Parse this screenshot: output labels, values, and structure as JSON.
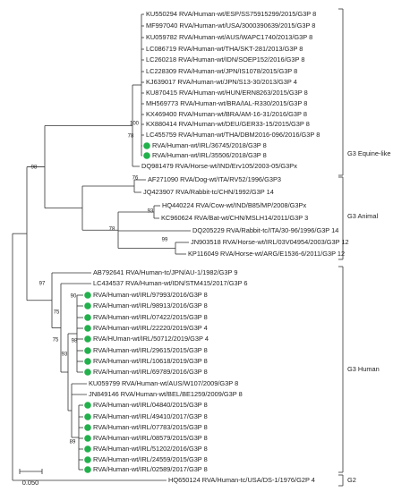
{
  "leaves": [
    {
      "label": "KU550294 RVA/Human-wt/ESP/SS75915299/2015/G3P 8"
    },
    {
      "label": "MF997040 RVA/Human-wt/USA/3000390639/2015/G3P 8"
    },
    {
      "label": "KU059782 RVA/Human-wt/AUS/WAPC1740/2013/G3P 8"
    },
    {
      "label": "LC086719 RVA/Human-wt/THA/SKT-281/2013/G3P 8"
    },
    {
      "label": "LC260218 RVA/Human-wt/IDN/SOEP152/2016/G3P 8"
    },
    {
      "label": "LC228309 RVA/Human-wt/JPN/IS1078/2015/G3P 8"
    },
    {
      "label": "KJ639017 RVA/Human-wt/JPN/S13-30/2013/G3P 4"
    },
    {
      "label": "KU870415 RVA/Human-wt/HUN/ERN8263/2015/G3P 8"
    },
    {
      "label": "MH569773 RVA/Human-wt/BRA/IAL-R330/2015/G3P 8"
    },
    {
      "label": "KX469400 RVA/Human-wt/BRA/AM-16-31/2016/G3P 8"
    },
    {
      "label": "KX880414 RVA/Human-wt/DEU/GER33-15/2015/G3P 8"
    },
    {
      "label": "LC455759 RVA/Human-wt/THA/DBM2016-096/2016/G3P 8"
    },
    {
      "label": "RVA/Human-wt/IRL/36745/2018/G3P 8"
    },
    {
      "label": "RVA/Human-wt/IRL/35506/2018/G3P 8"
    },
    {
      "label": "DQ981479 RVA/Horse-wt/IND/Erv105/2003-05/G3Px"
    },
    {
      "label": "AF271090 RVA/Dog-wt/ITA/RV52/1996/G3P3"
    },
    {
      "label": "JQ423907 RVA/Rabbit-tc/CHN/1992/G3P 14"
    },
    {
      "label": "HQ440224 RVA/Cow-wt/IND/B85/MP/2008/G3Px"
    },
    {
      "label": "KC960624 RVA/Bat-wt/CHN/MSLH14/2011/G3P 3"
    },
    {
      "label": "DQ205229 RVA/Rabbit-tc/ITA/30-96/1996/G3P 14"
    },
    {
      "label": "JN903518 RVA/Horse-wt/IRL/03V04954/2003/G3P 12"
    },
    {
      "label": "KP116049 RVA/Horse-wt/ARG/E1536-6/2011/G3P 12"
    },
    {
      "label": "AB792641 RVA/Human-tc/JPN/AU-1/1982/G3P 9"
    },
    {
      "label": "LC434537 RVA/Human-wt/IDN/STM415/2017/G3P 6"
    },
    {
      "label": "RVA/Human-wt/IRL/97993/2016/G3P 8"
    },
    {
      "label": "RVA/Human-wt/IRL/98913/2016/G3P 8"
    },
    {
      "label": "RVA/Human-wt/IRL/07422/2015/G3P 8"
    },
    {
      "label": "RVA/Human-wt/IRL/22220/2019/G3P 4"
    },
    {
      "label": "RVA/HUman-wt/IRL/50712/2019/G3P 4"
    },
    {
      "label": "RVA/Human-wt/IRL/29615/2015/G3P 8"
    },
    {
      "label": "RVA/Human-wt/IRL/10618/2019/G3P 8"
    },
    {
      "label": "RVA/Human-wt/IRL/69789/2016/G3P 8"
    },
    {
      "label": "KU059799 RVA/Human-wt/AUS/W107/2009/G3P 8"
    },
    {
      "label": "JN849146 RVA/Human-wt/BEL/BE1259/2009/G3P 8"
    },
    {
      "label": "RVA/Human-wt/IRL/04840/2015/G3P 8"
    },
    {
      "label": "RVA/Human-wt/IRL/49410/2017/G3P 8"
    },
    {
      "label": "RVA/Human-wt/IRL/07783/2015/G3P 8"
    },
    {
      "label": "RVA/Human-wt/IRL/08579/2015/G3P 8"
    },
    {
      "label": "RVA/Human-wt/IRL/51202/2016/G3P 8"
    },
    {
      "label": "RVA/Human-wt/IRL/24559/2015/G3P 8"
    },
    {
      "label": "RVA/Human-wt/IRL/02589/2017/G3P 8"
    },
    {
      "label": "HQ650124 RVA/Human-tc/USA/DS-1/1976/G2P 4"
    }
  ],
  "bootstrap": [
    100,
    78,
    98,
    76,
    93,
    78,
    99,
    97,
    90,
    75,
    75,
    98,
    93,
    89
  ],
  "groups": [
    "G3 Equine-like",
    "G3 Animal",
    "G3 Human",
    "G2"
  ],
  "scale_bar": "0.050"
}
